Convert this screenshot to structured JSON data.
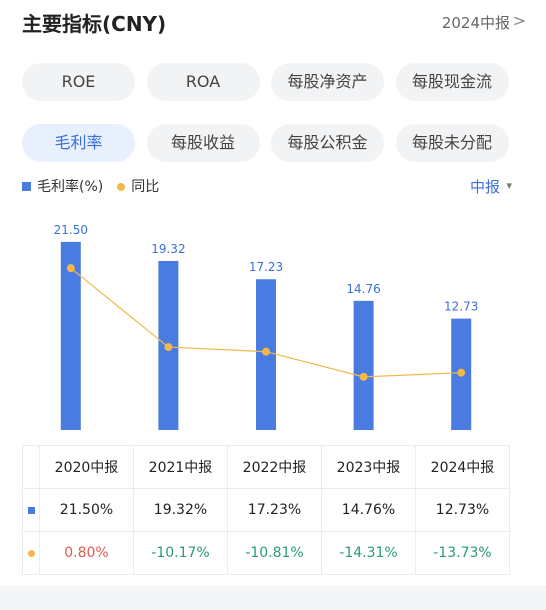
{
  "header": {
    "title": "主要指标(CNY)",
    "period": "2024中报",
    "arrow": ">"
  },
  "tabs": [
    "ROE",
    "ROA",
    "每股净资产",
    "每股现金流",
    "毛利率",
    "每股收益",
    "每股公积金",
    "每股未分配"
  ],
  "frequency": "中报",
  "frequency_arrow": "▾",
  "chart_data": {
    "type": "bar",
    "categories": [
      "2020中报",
      "2021中报",
      "2022中报",
      "2023中报",
      "2024中报"
    ],
    "ylim": [
      0,
      24
    ],
    "y2lim": [
      -21.7,
      7.5
    ],
    "series": [
      {
        "name": "毛利率(%)",
        "color": "#4a7be0",
        "values": [
          21.5,
          19.32,
          17.23,
          14.76,
          12.73
        ],
        "value_labels": [
          "21.50",
          "19.32",
          "17.23",
          "14.76",
          "12.73"
        ]
      },
      {
        "name": "同比",
        "color": "#f2b84b",
        "type": "line",
        "axis": "y2",
        "values": [
          0.8,
          -10.17,
          -10.81,
          -14.31,
          -13.73
        ]
      }
    ]
  },
  "table": {
    "rows": [
      [
        "21.50%",
        "19.32%",
        "17.23%",
        "14.76%",
        "12.73%"
      ],
      [
        "0.80%",
        "-10.17%",
        "-10.81%",
        "-14.31%",
        "-13.73%"
      ]
    ]
  }
}
